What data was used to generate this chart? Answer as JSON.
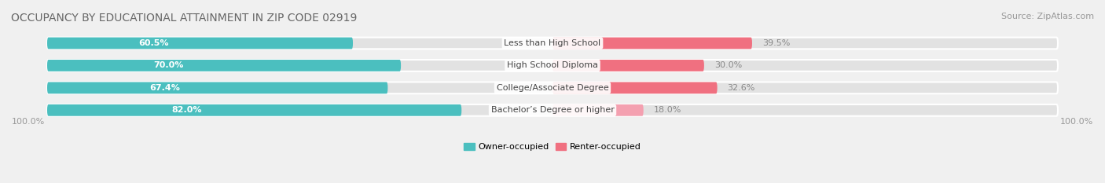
{
  "title": "OCCUPANCY BY EDUCATIONAL ATTAINMENT IN ZIP CODE 02919",
  "source_text": "Source: ZipAtlas.com",
  "categories": [
    "Less than High School",
    "High School Diploma",
    "College/Associate Degree",
    "Bachelor’s Degree or higher"
  ],
  "owner_pct": [
    60.5,
    70.0,
    67.4,
    82.0
  ],
  "renter_pct": [
    39.5,
    30.0,
    32.6,
    18.0
  ],
  "owner_color": "#4BBFBF",
  "renter_colors": [
    "#F07080",
    "#F07080",
    "#F07080",
    "#F4A0B0"
  ],
  "bg_color": "#F0F0F0",
  "bar_bg_color": "#E2E2E2",
  "title_color": "#666666",
  "source_color": "#999999",
  "label_color_owner": "#FFFFFF",
  "label_color_renter": "#888888",
  "cat_label_color": "#444444",
  "title_fontsize": 10,
  "label_fontsize": 8,
  "cat_fontsize": 8,
  "tick_fontsize": 8,
  "source_fontsize": 8,
  "legend_fontsize": 8,
  "x_left_label": "100.0%",
  "x_right_label": "100.0%"
}
